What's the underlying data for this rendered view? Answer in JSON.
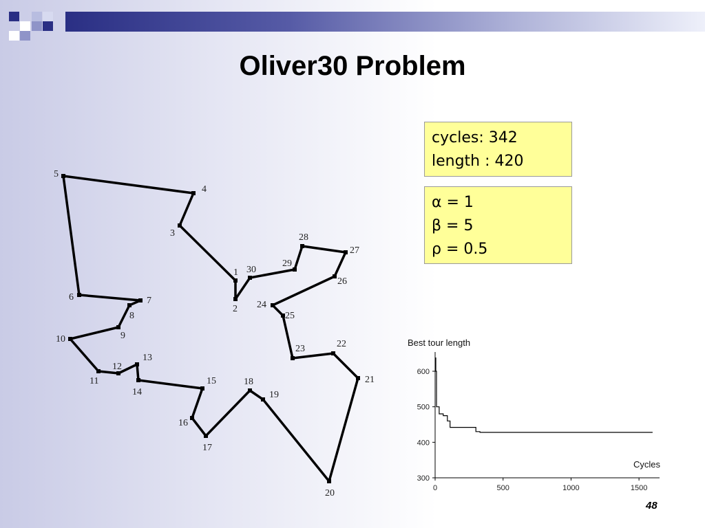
{
  "slide": {
    "title": "Oliver30 Problem",
    "page_number": "48"
  },
  "stats_box": {
    "cycles_line": "cycles: 342",
    "length_line": "length : 420"
  },
  "params_box": {
    "alpha_line": "α = 1",
    "beta_line": "β = 5",
    "rho_line": "ρ = 0.5"
  },
  "tour_labels": [
    "1",
    "2",
    "3",
    "4",
    "5",
    "6",
    "7",
    "8",
    "9",
    "10",
    "11",
    "12",
    "13",
    "14",
    "15",
    "16",
    "17",
    "18",
    "19",
    "20",
    "21",
    "22",
    "23",
    "24",
    "25",
    "26",
    "27",
    "28",
    "29",
    "30"
  ],
  "chart_data": {
    "type": "line",
    "title": "Best tour length",
    "xlabel": "Cycles",
    "ylabel": "",
    "xlim": [
      0,
      1600
    ],
    "ylim": [
      300,
      620
    ],
    "x_ticks": [
      "0",
      "500",
      "1000",
      "1500"
    ],
    "y_ticks": [
      "600",
      "500",
      "400",
      "300"
    ],
    "series": [
      {
        "x": [
          0,
          5,
          10,
          10,
          30,
          30,
          60,
          60,
          90,
          90,
          110,
          110,
          300,
          300,
          330,
          330,
          1600
        ],
        "y": [
          600,
          600,
          600,
          500,
          500,
          480,
          480,
          475,
          475,
          460,
          460,
          442,
          442,
          430,
          430,
          428,
          428
        ]
      }
    ]
  }
}
